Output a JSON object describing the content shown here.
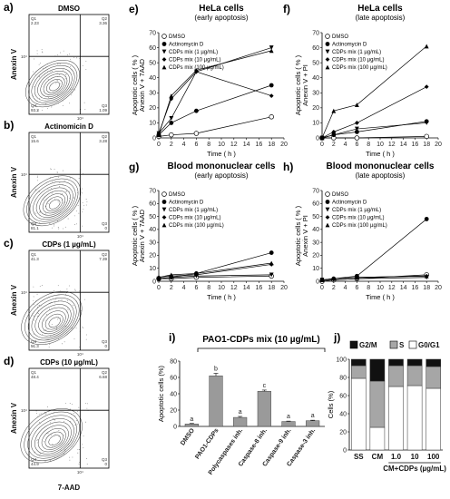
{
  "flow": {
    "axis_x": "7-AAD",
    "axis_y": "Anexin V",
    "tick_4": "10⁴",
    "q_labels": [
      "Q1",
      "Q2",
      "Q3",
      "Q4"
    ],
    "panels": [
      {
        "letter": "a)",
        "title": "DMSO",
        "q": [
          "2.23",
          "3.36",
          "1.09",
          "93.3"
        ],
        "spread": 0.6
      },
      {
        "letter": "b)",
        "title": "Actinomicin D",
        "q": [
          "15.6",
          "3.28",
          "0",
          "81.1"
        ],
        "spread": 0.75
      },
      {
        "letter": "c)",
        "title": "CDPs (1 µg/mL)",
        "q": [
          "41.3",
          "7.39",
          "0",
          "51.3"
        ],
        "spread": 0.9
      },
      {
        "letter": "d)",
        "title": "CDPs (10 µg/mL)",
        "q": [
          "48.4",
          "6.68",
          "0",
          "44.9"
        ],
        "spread": 0.95
      }
    ]
  },
  "line_common": {
    "x_label": "Time ( h )",
    "x_ticks": [
      0,
      2,
      4,
      6,
      8,
      10,
      12,
      14,
      16,
      18,
      20
    ],
    "y_ticks": [
      0,
      10,
      20,
      30,
      40,
      50,
      60,
      70
    ],
    "legend": [
      "DMSO",
      "Actinomycin D",
      "CDPs mix (1 µg/mL)",
      "CDPs mix (10 µg/mL)",
      "CDPs mix (100 µg/mL)"
    ],
    "legend_markers": [
      "circle-open",
      "circle",
      "triangle-down",
      "diamond",
      "triangle-up"
    ]
  },
  "chart_data": [
    {
      "type": "line",
      "panel": "e)",
      "title": "HeLa cells",
      "subtitle": "(early apoptosis)",
      "ylabel": [
        "Apoptotic  cells  ( % )",
        "Anexin V + 7AAD"
      ],
      "x": [
        0,
        2,
        6,
        18
      ],
      "ylim": [
        0,
        70
      ],
      "series": [
        {
          "name": "DMSO",
          "values": [
            1,
            2,
            3,
            14
          ]
        },
        {
          "name": "Actinomycin D",
          "values": [
            2,
            10,
            18,
            35
          ]
        },
        {
          "name": "CDPs mix (1 µg/mL)",
          "values": [
            3,
            13,
            44,
            60
          ]
        },
        {
          "name": "CDPs mix (10 µg/mL)",
          "values": [
            3,
            26,
            44,
            28
          ]
        },
        {
          "name": "CDPs mix (100 µg/mL)",
          "values": [
            2,
            28,
            45,
            58
          ]
        }
      ]
    },
    {
      "type": "line",
      "panel": "f)",
      "title": "HeLa cells",
      "subtitle": "(late apoptosis)",
      "ylabel": [
        "Apoptotic  cells  ( % )",
        "Anexin V + PI"
      ],
      "x": [
        0,
        2,
        6,
        18
      ],
      "ylim": [
        0,
        70
      ],
      "series": [
        {
          "name": "DMSO",
          "values": [
            0,
            0,
            0,
            1
          ]
        },
        {
          "name": "Actinomycin D",
          "values": [
            0,
            2,
            4,
            11
          ]
        },
        {
          "name": "CDPs mix (1 µg/mL)",
          "values": [
            0,
            2,
            6,
            10
          ]
        },
        {
          "name": "CDPs mix (10 µg/mL)",
          "values": [
            0,
            4,
            10,
            34
          ]
        },
        {
          "name": "CDPs mix (100 µg/mL)",
          "values": [
            0,
            18,
            22,
            61
          ]
        }
      ]
    },
    {
      "type": "line",
      "panel": "g)",
      "title": "Blood mononuclear cells",
      "subtitle": "(early apoptosis)",
      "ylabel": [
        "Apoptotic  cells  ( % )",
        "Anexin V + 7AAD"
      ],
      "x": [
        0,
        2,
        6,
        18
      ],
      "ylim": [
        0,
        70
      ],
      "series": [
        {
          "name": "DMSO",
          "values": [
            2,
            2,
            3,
            4
          ]
        },
        {
          "name": "Actinomycin D",
          "values": [
            2,
            3,
            6,
            22
          ]
        },
        {
          "name": "CDPs mix (1 µg/mL)",
          "values": [
            2,
            3,
            4,
            5
          ]
        },
        {
          "name": "CDPs mix (10 µg/mL)",
          "values": [
            3,
            4,
            5,
            13
          ]
        },
        {
          "name": "CDPs mix (100 µg/mL)",
          "values": [
            3,
            5,
            6,
            14
          ]
        }
      ]
    },
    {
      "type": "line",
      "panel": "h)",
      "title": "Blood mononuclear cells",
      "subtitle": "(late apoptosis)",
      "ylabel": [
        "Apoptotic  cells  ( % )",
        "Anexin V + PI"
      ],
      "x": [
        0,
        2,
        6,
        18
      ],
      "ylim": [
        0,
        70
      ],
      "series": [
        {
          "name": "DMSO",
          "values": [
            0,
            1,
            2,
            5
          ]
        },
        {
          "name": "Actinomycin D",
          "values": [
            1,
            2,
            4,
            48
          ]
        },
        {
          "name": "CDPs mix (1 µg/mL)",
          "values": [
            1,
            1,
            2,
            3
          ]
        },
        {
          "name": "CDPs mix (10 µg/mL)",
          "values": [
            1,
            2,
            3,
            4
          ]
        },
        {
          "name": "CDPs mix (100 µg/mL)",
          "values": [
            1,
            2,
            3,
            4
          ]
        }
      ]
    },
    {
      "type": "bar",
      "panel": "i)",
      "title": "PAO1-CDPs mix  (10 µg/mL)",
      "ylabel": "Apoptotic cells (%)",
      "ylim": [
        0,
        80
      ],
      "y_ticks": [
        0,
        20,
        40,
        60,
        80
      ],
      "categories": [
        "DMSO",
        "PAO1-CDPs",
        "Polycaspases inh.",
        "Caspase-8 inh.",
        "Caspase-9 inh.",
        "Caspase-3 inh."
      ],
      "values": [
        3,
        62,
        11,
        43,
        6,
        7
      ],
      "errors": [
        0.6,
        3,
        1.2,
        1.5,
        0.5,
        0.6
      ],
      "letters": [
        "a",
        "b",
        "a",
        "c",
        "a",
        "a"
      ]
    },
    {
      "type": "bar",
      "stacked": true,
      "panel": "j)",
      "ylabel": "Cells (%)",
      "ylim": [
        0,
        100
      ],
      "y_ticks": [
        0,
        20,
        40,
        60,
        80,
        100
      ],
      "categories": [
        "SS",
        "CM",
        "1.0",
        "10",
        "100"
      ],
      "group_label": "CM+CDPs (µg/mL)",
      "series": [
        {
          "name": "G0/G1",
          "color": "#ffffff",
          "values": [
            79,
            25,
            70,
            71,
            68
          ]
        },
        {
          "name": "S",
          "color": "#a6a6a6",
          "values": [
            14,
            51,
            23,
            22,
            24
          ]
        },
        {
          "name": "G2/M",
          "color": "#111111",
          "values": [
            7,
            24,
            7,
            7,
            8
          ]
        }
      ],
      "legend": [
        "G2/M",
        "S",
        "G0/G1"
      ]
    }
  ]
}
